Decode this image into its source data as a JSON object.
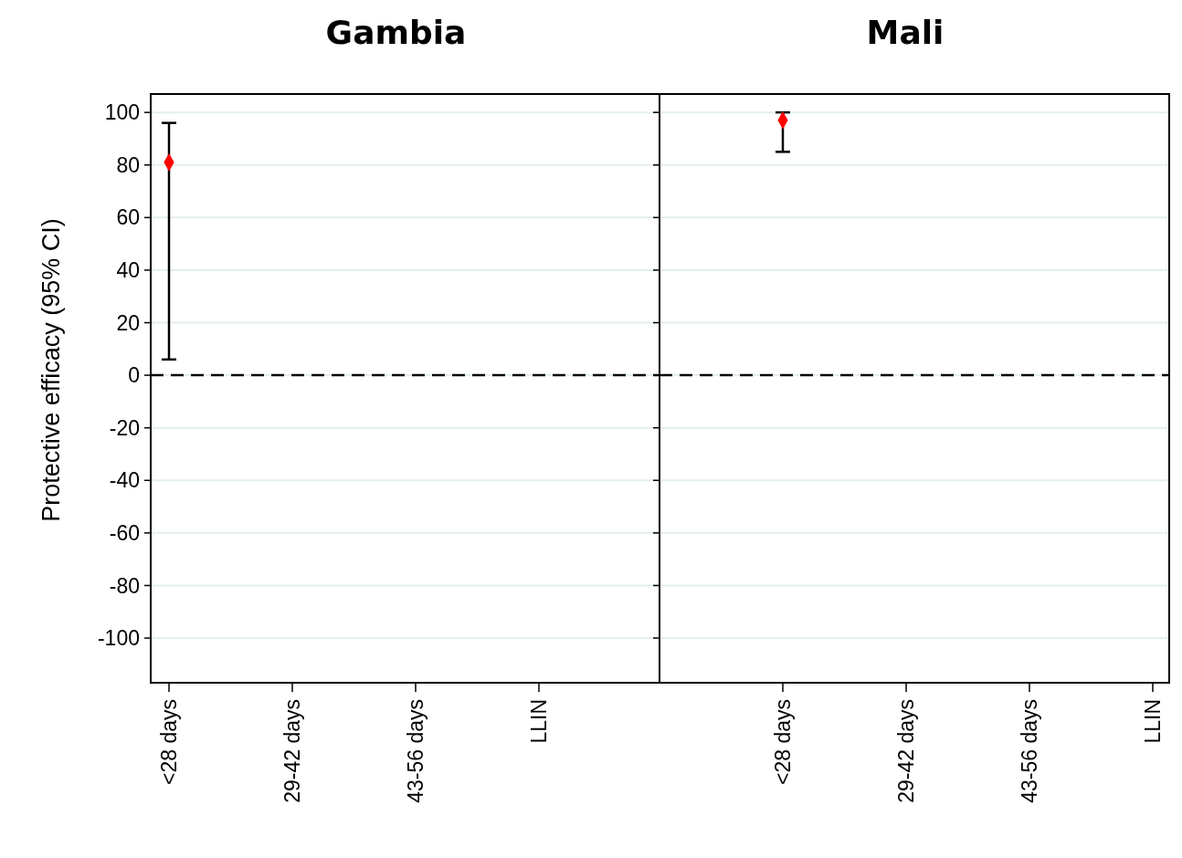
{
  "chart_data": [
    {
      "type": "scatter",
      "title": "Gambia",
      "ylabel": "Protective efficacy  (95% CI)",
      "categories": [
        "<28 days",
        "29-42 days",
        "43-56 days",
        "LLIN"
      ],
      "series": [
        {
          "color": "#ff0000",
          "values": [
            81,
            null,
            null,
            null
          ],
          "errors": [
            [
              6,
              96
            ],
            null,
            null,
            null
          ]
        }
      ],
      "ylim": [
        -117,
        107
      ],
      "yticks": [
        -100,
        -80,
        -60,
        -40,
        -20,
        0,
        20,
        40,
        60,
        80,
        100
      ],
      "grid": "y",
      "marker": "diamond",
      "ref_lines": [
        {
          "axis": "y",
          "value": 0,
          "line_style": "dashed",
          "color": "#000000"
        }
      ]
    },
    {
      "type": "scatter",
      "title": "Mali",
      "categories": [
        "<28 days",
        "29-42 days",
        "43-56 days",
        "LLIN"
      ],
      "series": [
        {
          "color": "#ff0000",
          "values": [
            97,
            null,
            null,
            null
          ],
          "errors": [
            [
              85,
              100
            ],
            null,
            null,
            null
          ]
        }
      ],
      "ylim": [
        -117,
        107
      ],
      "yticks": [
        -100,
        -80,
        -60,
        -40,
        -20,
        0,
        20,
        40,
        60,
        80,
        100
      ],
      "grid": "y",
      "marker": "diamond",
      "tick_labels": "x",
      "ref_lines": [
        {
          "axis": "y",
          "value": 0,
          "line_style": "dashed",
          "color": "#000000"
        }
      ]
    }
  ]
}
